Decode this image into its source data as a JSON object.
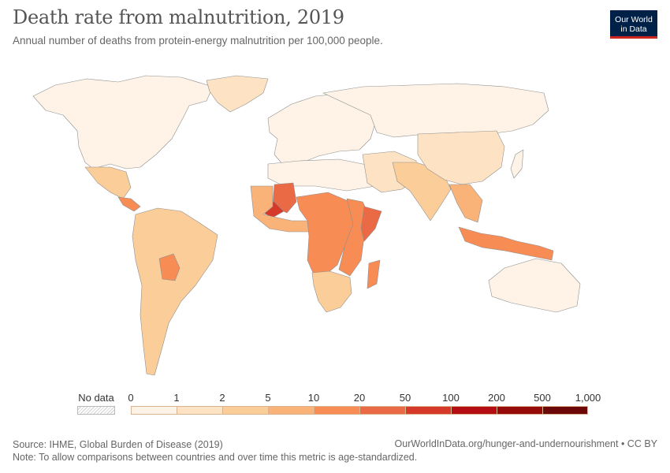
{
  "title": "Death rate from malnutrition, 2019",
  "subtitle": "Annual number of deaths from protein-energy malnutrition per 100,000 people.",
  "logo": {
    "line1": "Our World",
    "line2": "in Data"
  },
  "legend": {
    "no_data_label": "No data",
    "ticks": [
      "0",
      "1",
      "2",
      "5",
      "10",
      "20",
      "50",
      "100",
      "200",
      "500",
      "1,000"
    ],
    "colors": [
      "#fef3e6",
      "#fde3c4",
      "#fbcd99",
      "#f9b278",
      "#f88c55",
      "#ea6a45",
      "#d6392a",
      "#b50e12",
      "#960a0a",
      "#6d0808"
    ]
  },
  "regions": [
    {
      "name": "North America",
      "bin": 0
    },
    {
      "name": "Greenland",
      "bin": 1
    },
    {
      "name": "Mexico",
      "bin": 2
    },
    {
      "name": "Central America",
      "bin": 4
    },
    {
      "name": "South America",
      "bin": 2
    },
    {
      "name": "Bolivia",
      "bin": 4
    },
    {
      "name": "Europe",
      "bin": 0
    },
    {
      "name": "Russia",
      "bin": 0
    },
    {
      "name": "North Africa",
      "bin": 0
    },
    {
      "name": "Mali / Niger region",
      "bin": 5
    },
    {
      "name": "Sahel",
      "bin": 6
    },
    {
      "name": "West Africa",
      "bin": 3
    },
    {
      "name": "Central Africa",
      "bin": 4
    },
    {
      "name": "East Africa",
      "bin": 4
    },
    {
      "name": "Somalia",
      "bin": 5
    },
    {
      "name": "Southern Africa",
      "bin": 2
    },
    {
      "name": "Madagascar",
      "bin": 4
    },
    {
      "name": "Middle East",
      "bin": 1
    },
    {
      "name": "South Asia",
      "bin": 2
    },
    {
      "name": "China",
      "bin": 1
    },
    {
      "name": "Southeast Asia",
      "bin": 3
    },
    {
      "name": "Indonesia",
      "bin": 4
    },
    {
      "name": "Australia",
      "bin": 0
    },
    {
      "name": "Japan",
      "bin": 0
    }
  ],
  "footer": {
    "source": "Source: IHME, Global Burden of Disease (2019)",
    "note": "Note: To allow comparisons between countries and over time this metric is age-standardized.",
    "url": "OurWorldInData.org/hunger-and-undernourishment • CC BY"
  }
}
